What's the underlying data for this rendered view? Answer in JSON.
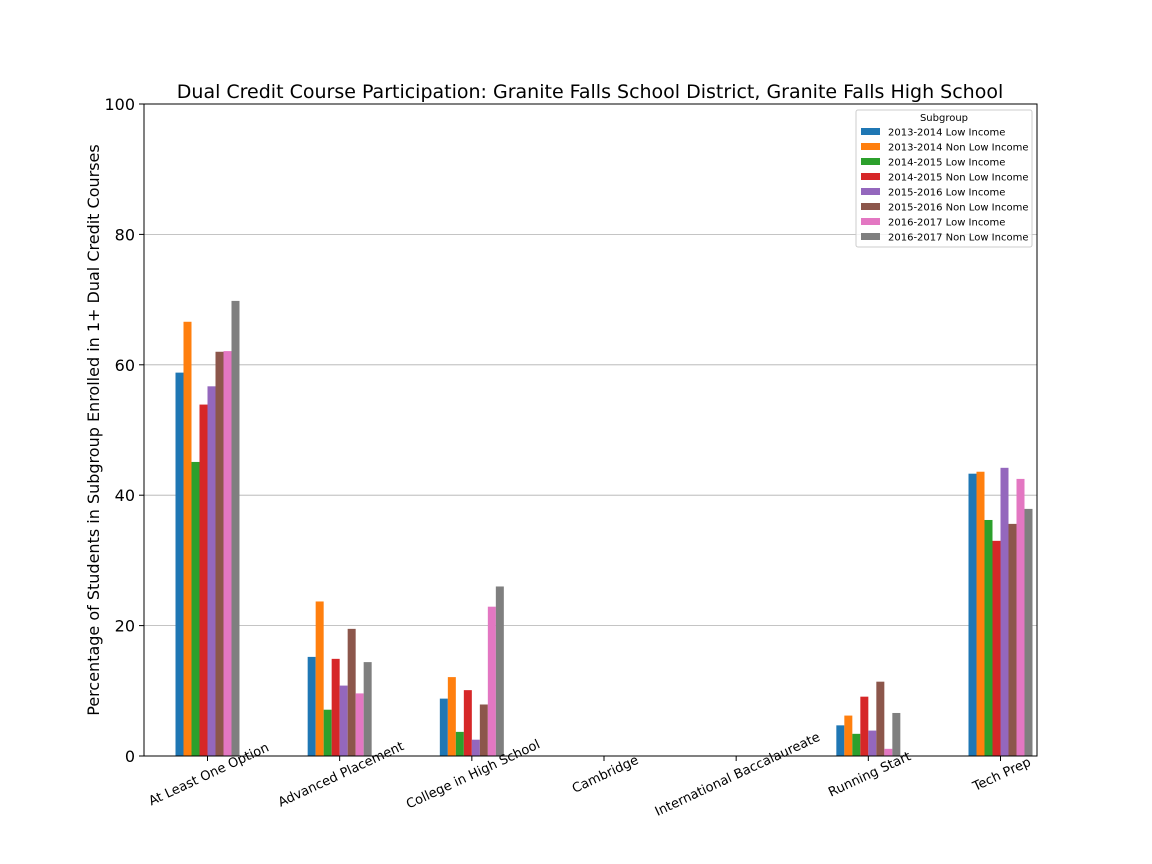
{
  "chart_data": {
    "type": "bar",
    "title": "Dual Credit Course Participation: Granite Falls School District, Granite Falls High School",
    "xlabel": "",
    "ylabel": "Percentage of Students in Subgroup Enrolled in 1+ Dual Credit Courses",
    "ylim": [
      0,
      100
    ],
    "yticks": [
      0,
      20,
      40,
      60,
      80,
      100
    ],
    "grid": "y",
    "legend": {
      "title": "Subgroup",
      "placement": "top-right"
    },
    "categories": [
      "At Least One Option",
      "Advanced Placement",
      "College in High School",
      "Cambridge",
      "International Baccalaureate",
      "Running Start",
      "Tech Prep"
    ],
    "series": [
      {
        "name": "2013-2014 Low Income",
        "color": "#1f77b4",
        "values": [
          58.8,
          15.2,
          8.8,
          0,
          0,
          4.7,
          43.3
        ]
      },
      {
        "name": "2013-2014 Non Low Income",
        "color": "#ff7f0e",
        "values": [
          66.6,
          23.7,
          12.1,
          0,
          0,
          6.2,
          43.6
        ]
      },
      {
        "name": "2014-2015 Low Income",
        "color": "#2ca02c",
        "values": [
          45.1,
          7.1,
          3.7,
          0,
          0,
          3.4,
          36.2
        ]
      },
      {
        "name": "2014-2015 Non Low Income",
        "color": "#d62728",
        "values": [
          53.9,
          14.9,
          10.1,
          0,
          0,
          9.1,
          33.0
        ]
      },
      {
        "name": "2015-2016 Low Income",
        "color": "#9467bd",
        "values": [
          56.7,
          10.8,
          2.5,
          0,
          0,
          3.9,
          44.2
        ]
      },
      {
        "name": "2015-2016 Non Low Income",
        "color": "#8c564b",
        "values": [
          62.0,
          19.5,
          7.9,
          0,
          0,
          11.4,
          35.6
        ]
      },
      {
        "name": "2016-2017 Low Income",
        "color": "#e377c2",
        "values": [
          62.1,
          9.6,
          22.9,
          0,
          0,
          1.1,
          42.5
        ]
      },
      {
        "name": "2016-2017 Non Low Income",
        "color": "#7f7f7f",
        "values": [
          69.8,
          14.4,
          26.0,
          0,
          0,
          6.6,
          37.9
        ]
      }
    ]
  }
}
